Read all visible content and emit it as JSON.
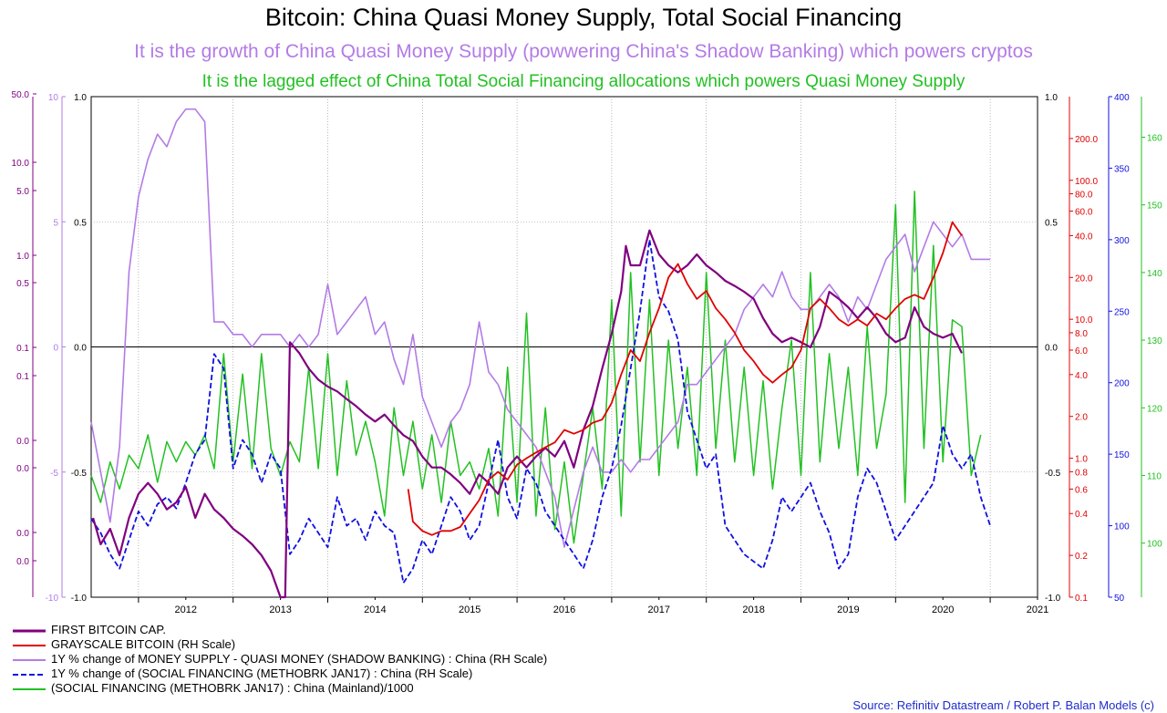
{
  "chart_data": {
    "type": "line",
    "title": "Bitcoin: China Quasi Money Supply, Total Social Financing",
    "subtitle": "It is the growth of China Quasi Money Supply (powwering China's Shadow Banking) which powers cryptos",
    "subtitle2": "It is the lagged effect of China Total Social Financing allocations which powers Quasi Money Supply",
    "source": "Source: Refinitiv Datastream / Robert P. Balan Models (c)",
    "x_ticks": [
      "2012",
      "2013",
      "2014",
      "2015",
      "2016",
      "2017",
      "2018",
      "2019",
      "2020",
      "2021"
    ],
    "xlim": [
      2011.5,
      2021.5
    ],
    "grid": true,
    "axes": {
      "left_btc": {
        "color": "#800080",
        "labels": [
          "50.0",
          "10.0",
          "5.0",
          "1.0",
          "0.5",
          "0.1",
          "0.1",
          "0.0",
          "0.0",
          "0.0",
          "0.0"
        ]
      },
      "left_qm": {
        "color": "#b37be6",
        "labels": [
          "10",
          "5",
          "0",
          "-5",
          "-10"
        ]
      },
      "main": {
        "labels": [
          "1.0",
          "0.5",
          "0.0",
          "-0.5",
          "-1.0"
        ]
      },
      "right_gbtc": {
        "color": "#e00000",
        "labels": [
          "200.0",
          "100.0",
          "80.0",
          "60.0",
          "40.0",
          "20.0",
          "10.0",
          "8.0",
          "6.0",
          "4.0",
          "2.0",
          "1.0",
          "0.8",
          "0.6",
          "0.4",
          "0.2",
          "0.1"
        ]
      },
      "right_sf": {
        "color": "#1010e0",
        "labels": [
          "400",
          "350",
          "300",
          "250",
          "200",
          "150",
          "100",
          "50"
        ]
      },
      "right_tsf": {
        "color": "#22c122",
        "labels": [
          "160",
          "150",
          "140",
          "130",
          "120",
          "110",
          "100"
        ]
      }
    },
    "series": [
      {
        "name": "FIRST BITCOIN CAP.",
        "color": "#800080",
        "style": "solid",
        "x": [
          2011.52,
          2011.6,
          2011.7,
          2011.8,
          2011.9,
          2012.0,
          2012.1,
          2012.2,
          2012.3,
          2012.4,
          2012.5,
          2012.6,
          2012.7,
          2012.8,
          2012.9,
          2013.0,
          2013.1,
          2013.2,
          2013.3,
          2013.4,
          2013.5,
          2013.55,
          2013.6,
          2013.7,
          2013.8,
          2013.9,
          2014.0,
          2014.1,
          2014.2,
          2014.3,
          2014.4,
          2014.5,
          2014.6,
          2014.7,
          2014.8,
          2014.9,
          2015.0,
          2015.1,
          2015.2,
          2015.3,
          2015.4,
          2015.5,
          2015.6,
          2015.7,
          2015.8,
          2015.9,
          2016.0,
          2016.1,
          2016.2,
          2016.3,
          2016.4,
          2016.5,
          2016.6,
          2016.7,
          2016.8,
          2016.9,
          2017.0,
          2017.1,
          2017.15,
          2017.2,
          2017.3,
          2017.4,
          2017.5,
          2017.6,
          2017.7,
          2017.8,
          2017.9,
          2018.0,
          2018.1,
          2018.2,
          2018.3,
          2018.4,
          2018.5,
          2018.6,
          2018.7,
          2018.8,
          2018.9,
          2019.0,
          2019.1,
          2019.2,
          2019.3,
          2019.4,
          2019.5,
          2019.6,
          2019.7,
          2019.8,
          2019.9,
          2020.0,
          2020.1,
          2020.2,
          2020.3,
          2020.4,
          2020.5,
          2020.6,
          2020.7
        ],
        "y": [
          0.0008,
          0.0004,
          0.0006,
          0.0003,
          0.0008,
          0.0015,
          0.002,
          0.0015,
          0.001,
          0.0012,
          0.0018,
          0.0008,
          0.0015,
          0.001,
          0.0008,
          0.0006,
          0.0005,
          0.0004,
          0.0003,
          0.0002,
          0.0001,
          0.0001,
          0.08,
          0.06,
          0.04,
          0.03,
          0.025,
          0.022,
          0.018,
          0.015,
          0.012,
          0.01,
          0.012,
          0.009,
          0.007,
          0.006,
          0.004,
          0.003,
          0.003,
          0.0025,
          0.002,
          0.0015,
          0.0025,
          0.002,
          0.0015,
          0.003,
          0.004,
          0.003,
          0.004,
          0.005,
          0.004,
          0.006,
          0.003,
          0.008,
          0.015,
          0.04,
          0.1,
          0.3,
          1.0,
          0.6,
          0.6,
          1.5,
          0.8,
          0.6,
          0.5,
          0.6,
          0.8,
          0.6,
          0.5,
          0.4,
          0.35,
          0.3,
          0.25,
          0.15,
          0.1,
          0.08,
          0.09,
          0.08,
          0.07,
          0.12,
          0.3,
          0.25,
          0.2,
          0.15,
          0.2,
          0.15,
          0.1,
          0.08,
          0.09,
          0.2,
          0.12,
          0.1,
          0.09,
          0.1,
          0.06
        ]
      },
      {
        "name": "GRAYSCALE BITCOIN (RH Scale)",
        "color": "#e00000",
        "style": "solid",
        "x": [
          2014.85,
          2014.9,
          2015.0,
          2015.1,
          2015.2,
          2015.3,
          2015.4,
          2015.5,
          2015.6,
          2015.7,
          2015.8,
          2015.9,
          2016.0,
          2016.1,
          2016.2,
          2016.3,
          2016.4,
          2016.5,
          2016.6,
          2016.7,
          2016.8,
          2016.9,
          2017.0,
          2017.1,
          2017.2,
          2017.3,
          2017.4,
          2017.5,
          2017.6,
          2017.7,
          2017.8,
          2017.9,
          2018.0,
          2018.1,
          2018.2,
          2018.3,
          2018.4,
          2018.5,
          2018.6,
          2018.7,
          2018.8,
          2018.9,
          2019.0,
          2019.1,
          2019.2,
          2019.3,
          2019.4,
          2019.5,
          2019.6,
          2019.7,
          2019.8,
          2019.9,
          2020.0,
          2020.1,
          2020.2,
          2020.3,
          2020.4,
          2020.5,
          2020.6,
          2020.7
        ],
        "y": [
          0.6,
          0.35,
          0.3,
          0.28,
          0.3,
          0.3,
          0.32,
          0.4,
          0.5,
          0.7,
          0.8,
          0.7,
          0.9,
          1.0,
          1.1,
          1.2,
          1.3,
          1.6,
          1.5,
          1.6,
          1.8,
          1.9,
          2.5,
          4.0,
          6.0,
          5.0,
          8.0,
          12.0,
          20.0,
          25.0,
          18.0,
          14.0,
          16.0,
          12.0,
          10.0,
          8.0,
          6.0,
          5.0,
          4.0,
          3.5,
          4.0,
          4.5,
          6.0,
          12.0,
          14.0,
          12.0,
          10.0,
          9.0,
          10.0,
          9.0,
          11.0,
          10.0,
          12.0,
          14.0,
          15.0,
          14.0,
          20.0,
          30.0,
          50.0,
          40.0
        ]
      },
      {
        "name": "1Y % change of MONEY SUPPLY - QUASI MONEY (SHADOW BANKING) : China (RH Scale)",
        "color": "#b37be6",
        "style": "solid",
        "x": [
          2011.5,
          2011.6,
          2011.7,
          2011.8,
          2011.9,
          2012.0,
          2012.1,
          2012.2,
          2012.3,
          2012.4,
          2012.5,
          2012.6,
          2012.7,
          2012.8,
          2012.9,
          2013.0,
          2013.1,
          2013.2,
          2013.3,
          2013.4,
          2013.5,
          2013.6,
          2013.7,
          2013.8,
          2013.9,
          2014.0,
          2014.1,
          2014.2,
          2014.3,
          2014.4,
          2014.5,
          2014.6,
          2014.7,
          2014.8,
          2014.9,
          2015.0,
          2015.1,
          2015.2,
          2015.3,
          2015.4,
          2015.5,
          2015.6,
          2015.7,
          2015.8,
          2015.9,
          2016.0,
          2016.1,
          2016.2,
          2016.3,
          2016.4,
          2016.5,
          2016.6,
          2016.7,
          2016.8,
          2016.9,
          2017.0,
          2017.1,
          2017.2,
          2017.3,
          2017.4,
          2017.5,
          2017.6,
          2017.7,
          2017.8,
          2017.9,
          2018.0,
          2018.1,
          2018.2,
          2018.3,
          2018.4,
          2018.5,
          2018.6,
          2018.7,
          2018.8,
          2018.9,
          2019.0,
          2019.1,
          2019.2,
          2019.3,
          2019.4,
          2019.5,
          2019.6,
          2019.7,
          2019.8,
          2019.9,
          2020.0,
          2020.1,
          2020.2,
          2020.3,
          2020.4,
          2020.5,
          2020.6,
          2020.7,
          2020.8,
          2020.9,
          2021.0
        ],
        "y": [
          -3,
          -5,
          -7,
          -4,
          3,
          6,
          7.5,
          8.5,
          8,
          9,
          9.5,
          9.5,
          9,
          1,
          1,
          0.5,
          0.5,
          0,
          0.5,
          0.5,
          0.5,
          0,
          0.5,
          0,
          0.5,
          2.5,
          0.5,
          1,
          1.5,
          2,
          0.5,
          1,
          -0.5,
          -1.5,
          0.5,
          -2,
          -3,
          -4,
          -3,
          -2.5,
          -1.5,
          1,
          -1,
          -1.5,
          -2.5,
          -3,
          -3.5,
          -4,
          -5,
          -6,
          -8,
          -6.5,
          -5,
          -4,
          -5,
          -5,
          -4.5,
          -5,
          -4.5,
          -4.5,
          -4,
          -3.5,
          -3,
          -1.5,
          -1.5,
          -1,
          -0.5,
          0,
          0.5,
          1.5,
          2,
          2.5,
          2,
          3,
          2,
          1.5,
          1.5,
          2,
          2.5,
          2,
          1,
          2,
          1.5,
          2.5,
          3.5,
          4,
          4.5,
          3,
          4,
          5,
          4.5,
          4,
          4.5,
          3.5,
          3.5,
          3.5
        ]
      },
      {
        "name": "1Y % change of (SOCIAL FINANCING (METHOBRK JAN17) : China (RH Scale)",
        "color": "#1010e0",
        "style": "dashed",
        "x": [
          2011.5,
          2011.6,
          2011.7,
          2011.8,
          2011.9,
          2012.0,
          2012.1,
          2012.2,
          2012.3,
          2012.4,
          2012.5,
          2012.6,
          2012.7,
          2012.8,
          2012.9,
          2013.0,
          2013.1,
          2013.2,
          2013.3,
          2013.4,
          2013.5,
          2013.6,
          2013.7,
          2013.8,
          2013.9,
          2014.0,
          2014.1,
          2014.2,
          2014.3,
          2014.4,
          2014.5,
          2014.6,
          2014.7,
          2014.8,
          2014.9,
          2015.0,
          2015.1,
          2015.2,
          2015.3,
          2015.4,
          2015.5,
          2015.6,
          2015.7,
          2015.8,
          2015.9,
          2016.0,
          2016.1,
          2016.2,
          2016.3,
          2016.4,
          2016.5,
          2016.6,
          2016.7,
          2016.8,
          2016.9,
          2017.0,
          2017.1,
          2017.2,
          2017.3,
          2017.4,
          2017.5,
          2017.6,
          2017.7,
          2017.8,
          2017.9,
          2018.0,
          2018.1,
          2018.2,
          2018.3,
          2018.4,
          2018.5,
          2018.6,
          2018.7,
          2018.8,
          2018.9,
          2019.0,
          2019.1,
          2019.2,
          2019.3,
          2019.4,
          2019.5,
          2019.6,
          2019.7,
          2019.8,
          2019.9,
          2020.0,
          2020.1,
          2020.2,
          2020.3,
          2020.4,
          2020.5,
          2020.6,
          2020.7,
          2020.8,
          2020.9,
          2021.0
        ],
        "y": [
          105,
          95,
          80,
          70,
          90,
          110,
          100,
          115,
          120,
          112,
          130,
          150,
          160,
          220,
          210,
          140,
          160,
          150,
          130,
          150,
          140,
          80,
          90,
          105,
          95,
          85,
          120,
          100,
          105,
          90,
          110,
          100,
          95,
          60,
          70,
          90,
          80,
          100,
          120,
          110,
          90,
          100,
          130,
          160,
          120,
          105,
          140,
          130,
          110,
          100,
          90,
          80,
          70,
          90,
          120,
          140,
          170,
          210,
          250,
          300,
          260,
          250,
          230,
          180,
          160,
          140,
          150,
          100,
          90,
          80,
          75,
          70,
          90,
          120,
          110,
          120,
          130,
          110,
          95,
          70,
          80,
          120,
          140,
          130,
          110,
          90,
          100,
          110,
          120,
          130,
          170,
          150,
          140,
          150,
          120,
          100
        ]
      },
      {
        "name": "(SOCIAL FINANCING (METHOBRK JAN17) : China (Mainland)/1000",
        "color": "#22c122",
        "style": "solid",
        "x": [
          2011.5,
          2011.6,
          2011.7,
          2011.8,
          2011.9,
          2012.0,
          2012.1,
          2012.2,
          2012.3,
          2012.4,
          2012.5,
          2012.6,
          2012.7,
          2012.8,
          2012.9,
          2013.0,
          2013.1,
          2013.2,
          2013.3,
          2013.4,
          2013.5,
          2013.6,
          2013.7,
          2013.8,
          2013.9,
          2014.0,
          2014.1,
          2014.2,
          2014.3,
          2014.4,
          2014.5,
          2014.6,
          2014.7,
          2014.8,
          2014.9,
          2015.0,
          2015.1,
          2015.2,
          2015.3,
          2015.4,
          2015.5,
          2015.6,
          2015.7,
          2015.8,
          2015.9,
          2016.0,
          2016.1,
          2016.2,
          2016.3,
          2016.4,
          2016.5,
          2016.6,
          2016.7,
          2016.8,
          2016.9,
          2017.0,
          2017.1,
          2017.2,
          2017.3,
          2017.4,
          2017.5,
          2017.6,
          2017.7,
          2017.8,
          2017.9,
          2018.0,
          2018.1,
          2018.2,
          2018.3,
          2018.4,
          2018.5,
          2018.6,
          2018.7,
          2018.8,
          2018.9,
          2019.0,
          2019.1,
          2019.2,
          2019.3,
          2019.4,
          2019.5,
          2019.6,
          2019.7,
          2019.8,
          2019.9,
          2020.0,
          2020.1,
          2020.2,
          2020.3,
          2020.4,
          2020.5,
          2020.6,
          2020.7,
          2020.8,
          2020.9
        ],
        "y": [
          110,
          106,
          112,
          108,
          113,
          111,
          116,
          109,
          115,
          112,
          115,
          113,
          116,
          111,
          128,
          112,
          125,
          111,
          128,
          114,
          110,
          115,
          112,
          126,
          111,
          128,
          110,
          124,
          113,
          118,
          112,
          104,
          120,
          110,
          118,
          108,
          116,
          106,
          118,
          110,
          112,
          108,
          114,
          104,
          126,
          106,
          134,
          104,
          120,
          102,
          112,
          100,
          110,
          120,
          108,
          136,
          104,
          140,
          112,
          136,
          110,
          130,
          114,
          126,
          110,
          140,
          114,
          130,
          112,
          126,
          110,
          124,
          108,
          120,
          130,
          110,
          140,
          112,
          128,
          114,
          126,
          110,
          132,
          114,
          122,
          150,
          106,
          152,
          114,
          144,
          112,
          133,
          132,
          110,
          116
        ]
      }
    ]
  }
}
